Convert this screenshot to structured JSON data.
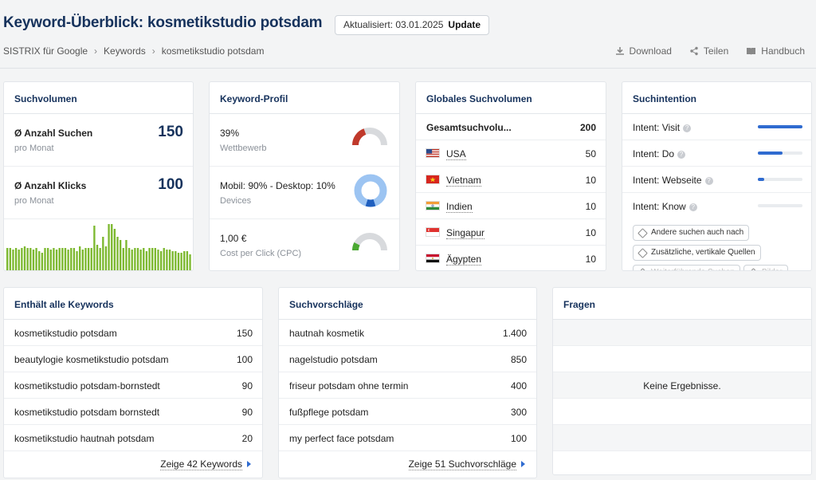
{
  "header": {
    "title": "Keyword-Überblick: kosmetikstudio potsdam",
    "updated_label": "Aktualisiert: 03.01.2025",
    "update_button": "Update",
    "breadcrumb": [
      "SISTRIX für Google",
      "Keywords",
      "kosmetikstudio potsdam"
    ],
    "actions": {
      "download": "Download",
      "share": "Teilen",
      "manual": "Handbuch"
    }
  },
  "volume": {
    "title": "Suchvolumen",
    "searches_label": "Ø Anzahl Suchen",
    "searches_value": "150",
    "searches_sub": "pro Monat",
    "clicks_label": "Ø Anzahl Klicks",
    "clicks_value": "100",
    "clicks_sub": "pro Monat",
    "history_color": "#7cb82f"
  },
  "chart_data": {
    "type": "bar",
    "title": "",
    "values": [
      30,
      30,
      28,
      30,
      28,
      30,
      32,
      30,
      30,
      28,
      30,
      26,
      24,
      30,
      30,
      28,
      30,
      28,
      30,
      30,
      30,
      28,
      30,
      30,
      26,
      32,
      28,
      30,
      30,
      30,
      58,
      34,
      30,
      44,
      32,
      60,
      60,
      54,
      44,
      40,
      30,
      40,
      30,
      28,
      30,
      30,
      28,
      30,
      26,
      30,
      30,
      30,
      28,
      26,
      30,
      28,
      28,
      26,
      26,
      24,
      24,
      26,
      26,
      22
    ],
    "ylim": [
      0,
      62
    ]
  },
  "profile": {
    "title": "Keyword-Profil",
    "rows": [
      {
        "value": "39%",
        "sub": "Wettbewerb",
        "gauge": 0.39,
        "color": "#c0392b"
      },
      {
        "value": "Mobil: 90% - Desktop: 10%",
        "sub": "Devices",
        "donut": 0.9,
        "color": "#9cc4f2",
        "accent": "#1f5fbf"
      },
      {
        "value": "1,00 €",
        "sub": "Cost per Click (CPC)",
        "gauge": 0.15,
        "color": "#4aa832"
      }
    ]
  },
  "global": {
    "title": "Globales Suchvolumen",
    "total_label": "Gesamtsuchvolu...",
    "total_value": "200",
    "countries": [
      {
        "name": "USA",
        "value": "50"
      },
      {
        "name": "Vietnam",
        "value": "10"
      },
      {
        "name": "Indien",
        "value": "10"
      },
      {
        "name": "Singapur",
        "value": "10"
      },
      {
        "name": "Ägypten",
        "value": "10"
      }
    ]
  },
  "intent": {
    "title": "Suchintention",
    "items": [
      {
        "label": "Intent: Visit",
        "level": 1.0
      },
      {
        "label": "Intent: Do",
        "level": 0.55
      },
      {
        "label": "Intent: Webseite",
        "level": 0.15
      },
      {
        "label": "Intent: Know",
        "level": 0.0
      }
    ],
    "chips": [
      "Andere suchen auch nach",
      "Zusätzliche, vertikale Quellen",
      "Weiterführende Suchen",
      "Bilder"
    ]
  },
  "keywords": {
    "title": "Enthält alle Keywords",
    "rows": [
      {
        "k": "kosmetikstudio potsdam",
        "v": "150"
      },
      {
        "k": "beautylogie kosmetikstudio potsdam",
        "v": "100"
      },
      {
        "k": "kosmetikstudio potsdam-bornstedt",
        "v": "90"
      },
      {
        "k": "kosmetikstudio potsdam bornstedt",
        "v": "90"
      },
      {
        "k": "kosmetikstudio hautnah potsdam",
        "v": "20"
      }
    ],
    "more": "Zeige 42 Keywords"
  },
  "suggest": {
    "title": "Suchvorschläge",
    "rows": [
      {
        "k": "hautnah kosmetik",
        "v": "1.400"
      },
      {
        "k": "nagelstudio potsdam",
        "v": "850"
      },
      {
        "k": "friseur potsdam ohne termin",
        "v": "400"
      },
      {
        "k": "fußpflege potsdam",
        "v": "300"
      },
      {
        "k": "my perfect face potsdam",
        "v": "100"
      }
    ],
    "more": "Zeige 51 Suchvorschläge"
  },
  "questions": {
    "title": "Fragen",
    "empty": "Keine Ergebnisse."
  }
}
